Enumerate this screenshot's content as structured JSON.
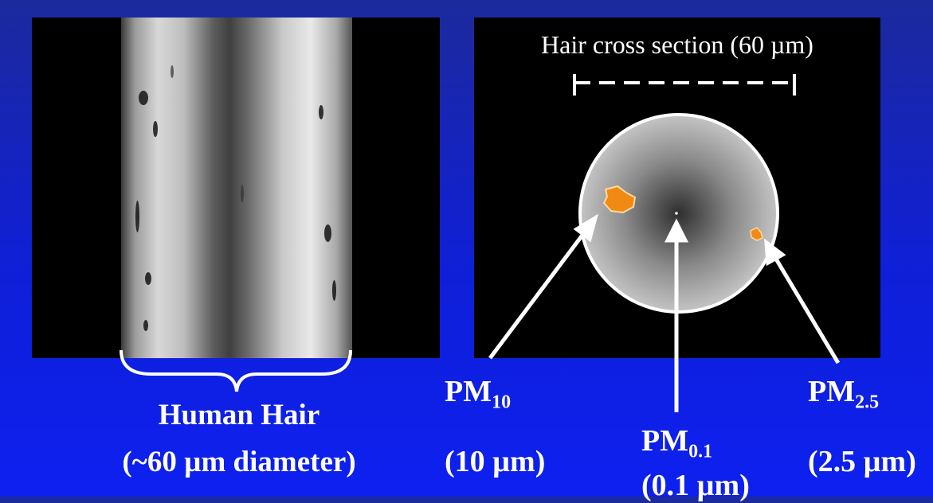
{
  "left_panel": {
    "caption_line1": "Human Hair",
    "caption_line2": "(~60 µm diameter)"
  },
  "right_panel": {
    "title": "Hair cross section (60 µm)"
  },
  "particles": [
    {
      "id": "pm10",
      "main": "PM",
      "sub": "10",
      "size": "(10 µm)"
    },
    {
      "id": "pm01",
      "main": "PM",
      "sub": "0.1",
      "size": "(0.1 µm)"
    },
    {
      "id": "pm25",
      "main": "PM",
      "sub": "2.5",
      "size": "(2.5 µm)"
    }
  ],
  "colors": {
    "background": "#0f1fd8",
    "particle": "#f08a12",
    "arrow": "#ffffff"
  }
}
